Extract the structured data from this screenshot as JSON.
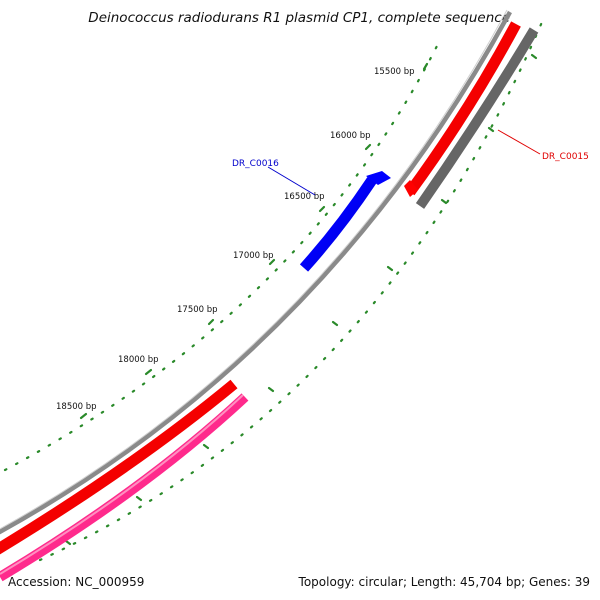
{
  "title": "Deinococcus radiodurans R1 plasmid CP1, complete sequence",
  "footer": {
    "accession": "Accession: NC_000959",
    "summary": "Topology: circular; Length: 45,704 bp; Genes: 39"
  },
  "tick_labels": [
    "15500 bp",
    "16000 bp",
    "16500 bp",
    "17000 bp",
    "17500 bp",
    "18000 bp",
    "18500 bp"
  ],
  "genes": [
    {
      "name": "DR_C0015",
      "color": "#e8000f",
      "strand": "reverse"
    },
    {
      "name": "DR_C0016",
      "color": "#0000e0",
      "strand": "forward"
    }
  ],
  "colors": {
    "backbone": "#858585",
    "reverse_feature": "#ff0000",
    "forward_feature": "#0000ff",
    "gray_feature": "#666666",
    "pink_feature": "#ff2a8c",
    "tick_green": "#228b22"
  }
}
